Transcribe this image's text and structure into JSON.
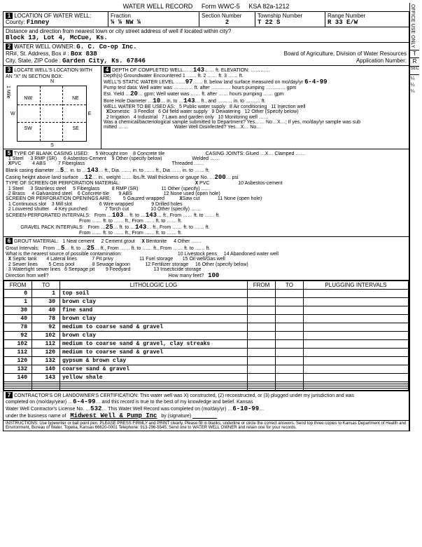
{
  "form": {
    "title": "WATER WELL RECORD",
    "form_no": "Form WWC-5",
    "ksa": "KSA 82a-1212"
  },
  "loc": {
    "heading": "LOCATION OF WATER WELL:",
    "county_lbl": "County:",
    "county": "Finney",
    "fraction_lbl": "Fraction",
    "fraction": "¼        ¼    NW   ¼",
    "section_lbl": "Section Number",
    "section": "2",
    "township_lbl": "Township Number",
    "township_val": "T    22    S",
    "range_lbl": "Range Number",
    "range_val": "R    33    E/W",
    "dist_lbl": "Distance and direction from nearest town or city street address of well if located within city?",
    "dist_val": "Block 13, Lot 4, McCue, Ks."
  },
  "owner": {
    "heading": "WATER WELL OWNER:",
    "name": "G. C. Co-op Inc.",
    "addr_lbl": "RR#, St. Address, Box # :",
    "addr": "Box 838",
    "city_lbl": "City, State, ZIP Code :",
    "city": "Garden City, Ks.  67846",
    "board": "Board of Agriculture, Division of Water Resources",
    "app_lbl": "Application Number:"
  },
  "locate": {
    "heading": "LOCATE WELL'S LOCATION WITH AN \"X\" IN SECTION BOX:",
    "n": "N",
    "s": "S",
    "e": "E",
    "w": "W",
    "nw": "NW",
    "ne": "NE",
    "sw": "SW",
    "se": "SE",
    "mile": "1 Mile"
  },
  "depth": {
    "heading": "DEPTH OF COMPLETED WELL",
    "val": "143",
    "ft": "ft.",
    "elev_lbl": "ELEVATION:",
    "gw": "Depth(s) Groundwater Encountered",
    "gw1": "1",
    "gw2": "2",
    "gw3": "3",
    "swl": "WELL'S STATIC WATER LEVEL",
    "swl_val": "97",
    "swl_txt": "ft. below land surface measured on mo/day/yr",
    "swl_date": "6-4-99",
    "pump": "Pump test data:  Well water was ………… ft. after ………… hours pumping ………… gpm",
    "est": "Est. Yield",
    "est_val": "20",
    "est_unit": "gpm;  Well water was …… ft. after …… hours pumping …… gpm",
    "bore": "Bore Hole Diameter",
    "bore_val": "10",
    "bore_to": "in. to",
    "bore_depth": "143",
    "bore_rest": "ft., and ……… in. to ……… ft.",
    "use": "WELL WATER TO BE USED AS:",
    "u1": "Domestic",
    "u2": "2 Irrigation",
    "u3": "3 Feedlot",
    "u4": "4 Industrial",
    "u5": "5 Public water supply",
    "u6": "6 Oil field water supply",
    "u7": "7 Lawn and garden only",
    "u8": "8 Air conditioning",
    "u9": "9 Dewatering",
    "u10": "10 Monitoring well",
    "u11": "11 Injection well",
    "u12": "12 Other (Specify below)",
    "chem": "Was a chemical/bacteriological sample submitted to Department? Yes…… No…X…; If yes, mo/day/yr sample was sub",
    "mitted": "mitted",
    "disinfect": "Water Well Disinfected? Yes…X… No…"
  },
  "casing": {
    "heading": "TYPE OF BLANK CASING USED:",
    "o1": "1 Steel",
    "o2": "PVC",
    "o3": "3 RMP (SR)",
    "o4": "4 ABS",
    "o5": "5 Wrought iron",
    "o6": "6 Asbestos-Cement",
    "o7": "7 Fiberglass",
    "o8": "8 Concrete tile",
    "o9": "9 Other (specify below)",
    "joints": "CASING JOINTS: Glued …X… Clamped ……",
    "welded": "Welded ……",
    "threaded": "Threaded ……",
    "dia": "Blank casing diameter",
    "dia_v": "5",
    "dia_to": "in. to",
    "dia_d": "143",
    "dia_rest": "ft., Dia. …… in. to …… ft., Dia …… in. to …… ft.",
    "ht": "Casing height above land surface",
    "ht_v": "12",
    "ht_rest": "in., weight …… lbs./ft. Wall thickness or gauge No.",
    "psi": "200",
    "psi_u": "psi",
    "screen": "TYPE OF SCREEN OR PERFORATION MATERIAL:",
    "s1": "1 Steel",
    "s2": "2 Brass",
    "s3": "3 Stainless steel",
    "s4": "4 Galvanized steel",
    "s5": "5 Fiberglass",
    "s6": "6 Concrete tile",
    "s7": "PVC",
    "s8": "8 RMP (SR)",
    "s9": "9 ABS",
    "s10": "10 Asbestos-cement",
    "s11": "11 Other (specify) ……",
    "s12": "12 None used (open hole)",
    "open": "SCREEN OR PERFORATION OPENINGS ARE:",
    "op1": "1 Continuous slot",
    "op2": "2 Louvered shutter",
    "op3": "3 Mill slot",
    "op4": "4 Key punched",
    "op5": "5 Gauzed wrapped",
    "op6": "6 Wire wrapped",
    "op7": "7 Torch cut",
    "op8": "Saw cut",
    "op9": "9 Drilled holes",
    "op10": "10 Other (specify) ……",
    "op11": "11 None (open hole)",
    "spi": "SCREEN-PERFORATED INTERVALS:",
    "spi_f": "From",
    "spi_v1": "103",
    "spi_t": "ft. to",
    "spi_v2": "143",
    "spi_rest": "ft., From …… ft. to …… ft.",
    "gpi": "GRAVEL PACK INTERVALS:",
    "gpi_v1": "25",
    "gpi_v2": "143"
  },
  "grout": {
    "heading": "GROUT MATERIAL:",
    "g1": "1 Neat cement",
    "g2": "2 Cement grout",
    "g3": "Bentonite",
    "g4": "4 Other ……",
    "gi": "Grout Intervals:",
    "gi_f": "From",
    "gi_v1": "5",
    "gi_t": "ft. to",
    "gi_v2": "25",
    "gi_rest": "ft., From …… ft. to …… ft., From …… ft. to …… ft.",
    "src": "What is the nearest source of possible contamination:",
    "c1": "Septic tank",
    "c2": "2 Sewer lines",
    "c3": "3 Watertight sewer lines",
    "c4": "4 Lateral lines",
    "c5": "5 Cess pool",
    "c6": "6 Seepage pit",
    "c7": "7 Pit privy",
    "c8": "8 Sewage lagoon",
    "c9": "9 Feedyard",
    "c10": "10 Livestock pens",
    "c11": "11 Fuel storage",
    "c12": "12 Fertilizer storage",
    "c13": "13 Insecticide storage",
    "c14": "14 Abandoned water well",
    "c15": "15 Oil well/Gas well",
    "c16": "16 Other (specify below)",
    "dir": "Direction from well?",
    "feet": "How many feet?",
    "feet_v": "100"
  },
  "litho": {
    "h_from": "FROM",
    "h_to": "TO",
    "h_log": "LITHOLOGIC LOG",
    "h_from2": "FROM",
    "h_to2": "TO",
    "h_plug": "PLUGGING INTERVALS",
    "rows": [
      {
        "f": "0",
        "t": "1",
        "d": "top soil"
      },
      {
        "f": "1",
        "t": "30",
        "d": "brown clay"
      },
      {
        "f": "30",
        "t": "40",
        "d": "fine sand"
      },
      {
        "f": "40",
        "t": "78",
        "d": "brown clay"
      },
      {
        "f": "78",
        "t": "92",
        "d": "medium to coarse sand & gravel"
      },
      {
        "f": "92",
        "t": "102",
        "d": "brown clay"
      },
      {
        "f": "102",
        "t": "112",
        "d": "medium to coarse sand & gravel, clay streaks"
      },
      {
        "f": "112",
        "t": "120",
        "d": "medium to coarse sand & gravel"
      },
      {
        "f": "120",
        "t": "132",
        "d": "gypsum & brown clay"
      },
      {
        "f": "132",
        "t": "140",
        "d": "coarse sand & gravel"
      },
      {
        "f": "140",
        "t": "143",
        "d": "yellow shale"
      },
      {
        "f": "",
        "t": "",
        "d": ""
      },
      {
        "f": "",
        "t": "",
        "d": ""
      },
      {
        "f": "",
        "t": "",
        "d": ""
      },
      {
        "f": "",
        "t": "",
        "d": ""
      }
    ]
  },
  "cert": {
    "heading": "CONTRACTOR'S OR LANDOWNER'S CERTIFICATION: This water well was X) constructed, (2) reconstructed, or (3) plugged under my jurisdiction and was",
    "line2a": "completed on (mo/day/year)",
    "date1": "6-4-99",
    "line2b": "and this record is true to the best of my knowledge and belief. Kansas",
    "line3a": "Water Well Contractor's License No.",
    "lic": "532",
    "line3b": "This Water Well Record was completed on (mo/day/yr)",
    "date2": "6-10-99",
    "line4a": "under the business name of",
    "biz": "Midwest Well & Pump Inc",
    "line4b": "by (signature)",
    "inst": "INSTRUCTIONS: Use typewriter or ball point pen. PLEASE PRESS FIRMLY and PRINT clearly. Please fill in blanks, underline or circle the correct answers. Send top three copies to Kansas Department of Health and Environment, Bureau of Water, Topeka, Kansas 66620-0001  Telephone: 913-296-5545. Send one to WATER WELL OWNER and retain one for your records."
  },
  "side": {
    "office": "OFFICE USE ONLY",
    "t": "T",
    "r": "R",
    "sec": "SEC",
    "quarters": "¼ ¼ ¼"
  }
}
